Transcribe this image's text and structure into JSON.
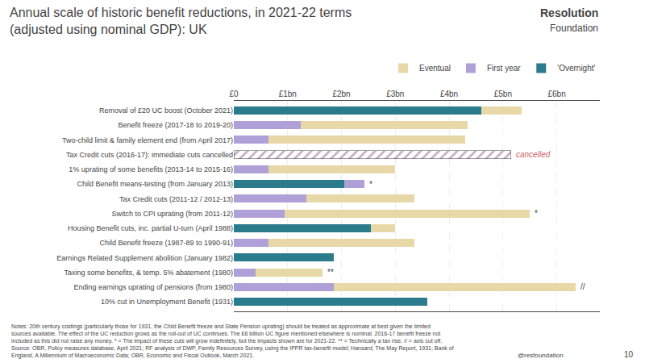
{
  "chart_data": {
    "type": "bar",
    "orientation": "horizontal",
    "stacked": true,
    "title": "Annual scale of historic benefit reductions, in 2021-22 terms\n(adjusted using nominal GDP): UK",
    "categories": [
      "Removal of £20 UC boost (October 2021)",
      "Benefit freeze (2017-18 to 2019-20)",
      "Two-child limit & family element end (from April 2017)",
      "Tax Credit cuts (2016-17): immediate cuts cancelled",
      "1% uprating of some benefits (2013-14 to 2015-16)",
      "Child Benefit means-testing (from January 2013)",
      "Tax Credit cuts (2011-12 / 2012-13)",
      "Switch to CPI uprating (from 2011-12)",
      "Housing Benefit cuts, inc. partial U-turn (April 1988)",
      "Child Benefit freeze (1987-89 to 1990-91)",
      "Earnings Related Supplement abolition (January 1982)",
      "Taxing some benefits, & temp. 5% abatement (1980)",
      "Ending earnings uprating of pensions (from 1980)",
      "10% cut in Unemployment Benefit (1931)"
    ],
    "series": [
      {
        "name": "'Overnight'",
        "color": "#2a7b8c",
        "values": [
          4.6,
          0.0,
          0.0,
          0.0,
          0.0,
          2.05,
          0.0,
          0.0,
          2.55,
          0.0,
          1.85,
          0.0,
          0.0,
          3.6
        ]
      },
      {
        "name": "First year",
        "color": "#b0a0d8",
        "values": [
          0.0,
          1.25,
          0.65,
          0.0,
          0.65,
          0.38,
          1.35,
          0.95,
          0.0,
          0.65,
          0.0,
          0.4,
          1.85,
          0.0
        ]
      },
      {
        "name": "Eventual",
        "color": "#e8d8a8",
        "values": [
          0.75,
          3.1,
          3.65,
          0.0,
          2.35,
          0.0,
          2.0,
          4.55,
          0.45,
          2.7,
          0.0,
          1.25,
          4.5,
          0.0
        ]
      },
      {
        "color": "#c8b0c0",
        "marker": "hatch",
        "values": [
          null,
          null,
          null,
          5.15,
          null,
          null,
          null,
          null,
          null,
          null,
          null,
          null,
          null,
          null
        ]
      }
    ],
    "xlim": [
      0,
      6.8
    ],
    "xticks": [
      {
        "value": 0,
        "label": "£0"
      },
      {
        "value": 1,
        "label": "£1bn"
      },
      {
        "value": 2,
        "label": "£2bn"
      },
      {
        "value": 3,
        "label": "£3bn"
      },
      {
        "value": 4,
        "label": "£4bn"
      },
      {
        "value": 5,
        "label": "£5bn"
      },
      {
        "value": 6,
        "label": "£6bn"
      }
    ],
    "grid": true,
    "legend": "upper right",
    "annotations": [
      {
        "text": "cancelled",
        "category": "Tax Credit cuts (2016-17): immediate cuts cancelled",
        "color": "#cc6666"
      },
      {
        "text": "*",
        "category": "Child Benefit means-testing (from January 2013)"
      },
      {
        "text": "*",
        "category": "Switch to CPI uprating (from 2011-12)"
      },
      {
        "text": "**",
        "category": "Taxing some benefits, & temp. 5% abatement (1980)"
      },
      {
        "text": "//",
        "category": "Ending earnings uprating of pensions (from 1980)"
      }
    ],
    "footnote": "Notes: 20th century costings (particularly those for 1931, the Child Benefit freeze and State Pension uprating) should be treated as approximate at best given the limited\nsources available. The effect of the UC reduction grows as the roll-out of UC continues. The £6 billion UC figure mentioned elsewhere is nominal. 2016-17 benefit freeze not\nincluded as this did not raise any money. * = The impact of these cuts will grow indefinitely, but the impacts shown are for 2021-22. ** = Technically a tax rise. // = axis cut off.\nSource: OBR, Policy measures database, April 2021; RF analysis of DWP, Family Resources Survey, using the IPPR tax-benefit model; Hansard; The May Report, 1931; Bank of\nEngland, A Millennium of Macroeconomic Data; OBR, Economic and Fiscal Outlook, March 2021.",
    "logo": [
      "Resolution",
      "Foundation"
    ],
    "handle": "@resfoundation",
    "page": "10"
  }
}
